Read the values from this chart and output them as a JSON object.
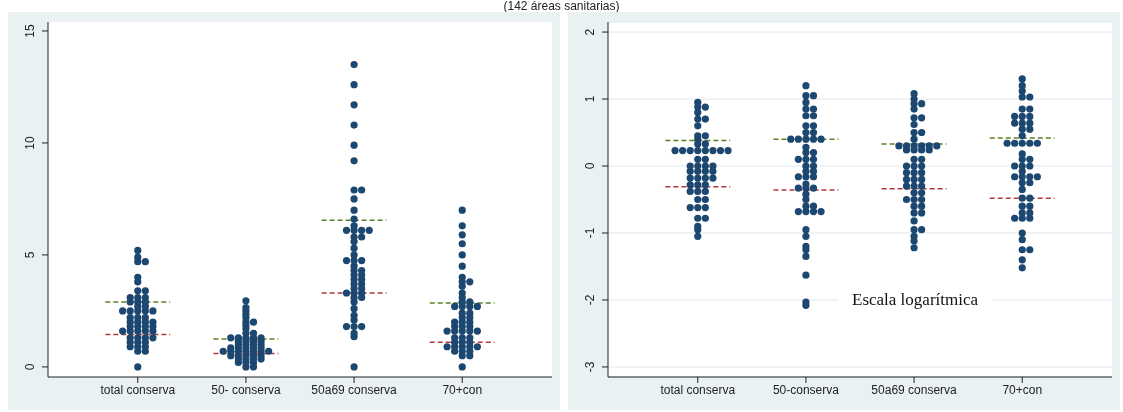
{
  "chart_data": [
    {
      "type": "scatter",
      "subtitle": "(142 áreas sanitarias)",
      "categories": [
        "total conserva",
        "50- conserva",
        "50a69 conserva",
        "70+con"
      ],
      "ylim": [
        -0.45,
        15.4
      ],
      "yticks": [
        0,
        5,
        10,
        15
      ],
      "marker": "circle",
      "series": [
        {
          "color": "#1b4770",
          "x": [
            "total conserva",
            "total conserva",
            "total conserva",
            "total conserva",
            "total conserva",
            "total conserva",
            "total conserva",
            "total conserva",
            "total conserva",
            "total conserva",
            "total conserva",
            "total conserva",
            "total conserva",
            "total conserva",
            "total conserva",
            "total conserva",
            "total conserva",
            "total conserva",
            "total conserva",
            "total conserva",
            "total conserva",
            "total conserva",
            "total conserva",
            "total conserva",
            "total conserva",
            "total conserva",
            "total conserva",
            "total conserva",
            "total conserva",
            "total conserva",
            "total conserva",
            "total conserva",
            "total conserva",
            "total conserva",
            "total conserva",
            "total conserva",
            "total conserva",
            "total conserva",
            "total conserva",
            "total conserva",
            "total conserva",
            "total conserva",
            "total conserva",
            "total conserva",
            "total conserva",
            "total conserva",
            "total conserva",
            "total conserva",
            "total conserva",
            "total conserva"
          ],
          "values": [
            0,
            0.7,
            0.7,
            0.9,
            0.9,
            0.9,
            1.1,
            1.1,
            1.1,
            1.3,
            1.3,
            1.3,
            1.3,
            1.6,
            1.6,
            1.6,
            1.6,
            1.6,
            1.8,
            1.8,
            1.8,
            1.8,
            2.0,
            2.0,
            2.0,
            2.0,
            2.2,
            2.2,
            2.2,
            2.5,
            2.5,
            2.5,
            2.5,
            2.5,
            2.7,
            2.7,
            2.9,
            2.9,
            2.9,
            3.1,
            3.1,
            3.1,
            3.4,
            3.4,
            3.8,
            4.0,
            4.7,
            4.7,
            4.9,
            5.2
          ]
        },
        {
          "color": "#1b4770",
          "x": [
            "50- conserva",
            "50- conserva",
            "50- conserva",
            "50- conserva",
            "50- conserva",
            "50- conserva",
            "50- conserva",
            "50- conserva",
            "50- conserva",
            "50- conserva",
            "50- conserva",
            "50- conserva",
            "50- conserva",
            "50- conserva",
            "50- conserva",
            "50- conserva",
            "50- conserva",
            "50- conserva",
            "50- conserva",
            "50- conserva",
            "50- conserva",
            "50- conserva",
            "50- conserva",
            "50- conserva",
            "50- conserva",
            "50- conserva",
            "50- conserva",
            "50- conserva",
            "50- conserva",
            "50- conserva",
            "50- conserva",
            "50- conserva",
            "50- conserva",
            "50- conserva",
            "50- conserva",
            "50- conserva",
            "50- conserva",
            "50- conserva",
            "50- conserva",
            "50- conserva",
            "50- conserva",
            "50- conserva",
            "50- conserva",
            "50- conserva",
            "50- conserva",
            "50- conserva",
            "50- conserva",
            "50- conserva",
            "50- conserva",
            "50- conserva"
          ],
          "values": [
            0,
            0,
            0.2,
            0.2,
            0.2,
            0.35,
            0.35,
            0.35,
            0.35,
            0.5,
            0.5,
            0.5,
            0.5,
            0.5,
            0.7,
            0.7,
            0.7,
            0.7,
            0.7,
            0.7,
            0.7,
            0.85,
            0.85,
            0.85,
            0.85,
            0.85,
            1.0,
            1.0,
            1.0,
            1.0,
            1.15,
            1.15,
            1.15,
            1.15,
            1.3,
            1.3,
            1.3,
            1.3,
            1.3,
            1.5,
            1.5,
            1.7,
            1.85,
            2.0,
            2.0,
            2.2,
            2.35,
            2.5,
            2.65,
            2.95
          ]
        },
        {
          "color": "#1b4770",
          "x": [
            "50a69 conserva",
            "50a69 conserva",
            "50a69 conserva",
            "50a69 conserva",
            "50a69 conserva",
            "50a69 conserva",
            "50a69 conserva",
            "50a69 conserva",
            "50a69 conserva",
            "50a69 conserva",
            "50a69 conserva",
            "50a69 conserva",
            "50a69 conserva",
            "50a69 conserva",
            "50a69 conserva",
            "50a69 conserva",
            "50a69 conserva",
            "50a69 conserva",
            "50a69 conserva",
            "50a69 conserva",
            "50a69 conserva",
            "50a69 conserva",
            "50a69 conserva",
            "50a69 conserva",
            "50a69 conserva",
            "50a69 conserva",
            "50a69 conserva",
            "50a69 conserva",
            "50a69 conserva",
            "50a69 conserva",
            "50a69 conserva",
            "50a69 conserva",
            "50a69 conserva",
            "50a69 conserva",
            "50a69 conserva",
            "50a69 conserva",
            "50a69 conserva",
            "50a69 conserva",
            "50a69 conserva",
            "50a69 conserva",
            "50a69 conserva",
            "50a69 conserva",
            "50a69 conserva",
            "50a69 conserva",
            "50a69 conserva",
            "50a69 conserva",
            "50a69 conserva",
            "50a69 conserva",
            "50a69 conserva",
            "50a69 conserva"
          ],
          "values": [
            0,
            1.35,
            1.5,
            1.8,
            1.8,
            1.8,
            2.1,
            2.3,
            2.6,
            2.9,
            3.1,
            3.1,
            3.3,
            3.3,
            3.3,
            3.5,
            3.5,
            3.7,
            3.7,
            3.9,
            3.9,
            4.1,
            4.1,
            4.3,
            4.3,
            4.5,
            4.75,
            4.75,
            4.75,
            5.0,
            5.3,
            5.6,
            5.8,
            5.8,
            6.1,
            6.1,
            6.1,
            6.1,
            6.3,
            6.6,
            7.0,
            7.5,
            7.9,
            7.9,
            9.2,
            9.9,
            10.8,
            11.7,
            12.6,
            13.5
          ]
        },
        {
          "color": "#1b4770",
          "x": [
            "70+con",
            "70+con",
            "70+con",
            "70+con",
            "70+con",
            "70+con",
            "70+con",
            "70+con",
            "70+con",
            "70+con",
            "70+con",
            "70+con",
            "70+con",
            "70+con",
            "70+con",
            "70+con",
            "70+con",
            "70+con",
            "70+con",
            "70+con",
            "70+con",
            "70+con",
            "70+con",
            "70+con",
            "70+con",
            "70+con",
            "70+con",
            "70+con",
            "70+con",
            "70+con",
            "70+con",
            "70+con",
            "70+con",
            "70+con",
            "70+con",
            "70+con",
            "70+con",
            "70+con",
            "70+con",
            "70+con",
            "70+con",
            "70+con",
            "70+con",
            "70+con",
            "70+con",
            "70+con",
            "70+con",
            "70+con",
            "70+con",
            "70+con"
          ],
          "values": [
            0,
            0.5,
            0.5,
            0.7,
            0.7,
            0.7,
            0.9,
            0.9,
            0.9,
            0.9,
            0.9,
            1.1,
            1.1,
            1.1,
            1.3,
            1.3,
            1.3,
            1.6,
            1.6,
            1.6,
            1.6,
            1.6,
            1.8,
            1.8,
            1.8,
            2.0,
            2.0,
            2.0,
            2.2,
            2.2,
            2.4,
            2.4,
            2.7,
            2.7,
            2.7,
            2.7,
            2.9,
            2.9,
            3.1,
            3.3,
            3.6,
            3.8,
            3.8,
            4.0,
            4.5,
            5.0,
            5.5,
            5.9,
            6.3,
            7.0
          ]
        }
      ],
      "ref_lines": [
        {
          "axis": "y",
          "value": 2.9,
          "color": "#5b7f1f",
          "line_style": "dashed"
        },
        {
          "axis": "y",
          "value": 1.45,
          "color": "#b5393b",
          "line_style": "dashed"
        },
        {
          "axis": "y",
          "value": 1.25,
          "color": "#5b7f1f",
          "line_style": "dashed"
        },
        {
          "axis": "y",
          "value": 0.6,
          "color": "#b5393b",
          "line_style": "dashed"
        },
        {
          "axis": "y",
          "value": 6.55,
          "color": "#5b7f1f",
          "line_style": "dashed"
        },
        {
          "axis": "y",
          "value": 3.3,
          "color": "#b5393b",
          "line_style": "dashed"
        },
        {
          "axis": "y",
          "value": 2.85,
          "color": "#5b7f1f",
          "line_style": "dashed"
        },
        {
          "axis": "y",
          "value": 1.1,
          "color": "#b5393b",
          "line_style": "dashed"
        }
      ]
    },
    {
      "type": "scatter",
      "categories": [
        "total conserva",
        "50-conserva",
        "50a69 conserva",
        "70+con"
      ],
      "ylim": [
        -3.15,
        2.15
      ],
      "yticks": [
        -3,
        -2,
        -1,
        0,
        1,
        2
      ],
      "grid": "y",
      "marker": "circle",
      "annotations": [
        "Escala logarítmica"
      ],
      "series": [
        {
          "color": "#1b4770",
          "x": [
            "total conserva",
            "total conserva",
            "total conserva",
            "total conserva",
            "total conserva",
            "total conserva",
            "total conserva",
            "total conserva",
            "total conserva",
            "total conserva",
            "total conserva",
            "total conserva",
            "total conserva",
            "total conserva",
            "total conserva",
            "total conserva",
            "total conserva",
            "total conserva",
            "total conserva",
            "total conserva",
            "total conserva",
            "total conserva",
            "total conserva",
            "total conserva",
            "total conserva",
            "total conserva",
            "total conserva",
            "total conserva",
            "total conserva",
            "total conserva",
            "total conserva",
            "total conserva",
            "total conserva",
            "total conserva",
            "total conserva",
            "total conserva",
            "total conserva",
            "total conserva",
            "total conserva",
            "total conserva",
            "total conserva",
            "total conserva",
            "total conserva",
            "total conserva",
            "total conserva",
            "total conserva",
            "total conserva",
            "total conserva",
            "total conserva",
            "total conserva"
          ],
          "values": [
            -1.05,
            -0.95,
            -0.9,
            -0.78,
            -0.78,
            -0.62,
            -0.62,
            -0.62,
            -0.5,
            -0.5,
            -0.38,
            -0.38,
            -0.38,
            -0.28,
            -0.28,
            -0.28,
            -0.18,
            -0.18,
            -0.18,
            -0.18,
            -0.08,
            -0.08,
            -0.08,
            -0.08,
            0,
            0,
            0,
            0,
            0.1,
            0.1,
            0.23,
            0.23,
            0.23,
            0.23,
            0.23,
            0.23,
            0.23,
            0.23,
            0.33,
            0.33,
            0.4,
            0.45,
            0.45,
            0.6,
            0.7,
            0.7,
            0.8,
            0.88,
            0.88,
            0.95
          ]
        },
        {
          "color": "#1b4770",
          "x": [
            "50-conserva",
            "50-conserva",
            "50-conserva",
            "50-conserva",
            "50-conserva",
            "50-conserva",
            "50-conserva",
            "50-conserva",
            "50-conserva",
            "50-conserva",
            "50-conserva",
            "50-conserva",
            "50-conserva",
            "50-conserva",
            "50-conserva",
            "50-conserva",
            "50-conserva",
            "50-conserva",
            "50-conserva",
            "50-conserva",
            "50-conserva",
            "50-conserva",
            "50-conserva",
            "50-conserva",
            "50-conserva",
            "50-conserva",
            "50-conserva",
            "50-conserva",
            "50-conserva",
            "50-conserva",
            "50-conserva",
            "50-conserva",
            "50-conserva",
            "50-conserva",
            "50-conserva",
            "50-conserva",
            "50-conserva",
            "50-conserva",
            "50-conserva",
            "50-conserva",
            "50-conserva",
            "50-conserva",
            "50-conserva",
            "50-conserva",
            "50-conserva",
            "50-conserva",
            "50-conserva",
            "50-conserva",
            "50-conserva",
            "50-conserva"
          ],
          "values": [
            -2.08,
            -2.03,
            -1.63,
            -1.35,
            -1.25,
            -1.2,
            -1.05,
            -0.95,
            -0.68,
            -0.68,
            -0.68,
            -0.68,
            -0.6,
            -0.6,
            -0.5,
            -0.42,
            -0.33,
            -0.33,
            -0.33,
            -0.27,
            -0.16,
            -0.16,
            -0.16,
            -0.08,
            -0.08,
            0,
            0,
            0.1,
            0.1,
            0.1,
            0.2,
            0.2,
            0.28,
            0.4,
            0.4,
            0.4,
            0.4,
            0.4,
            0.5,
            0.5,
            0.6,
            0.6,
            0.75,
            0.75,
            0.85,
            0.85,
            0.95,
            1.05,
            1.05,
            1.2
          ]
        },
        {
          "color": "#1b4770",
          "x": [
            "50a69 conserva",
            "50a69 conserva",
            "50a69 conserva",
            "50a69 conserva",
            "50a69 conserva",
            "50a69 conserva",
            "50a69 conserva",
            "50a69 conserva",
            "50a69 conserva",
            "50a69 conserva",
            "50a69 conserva",
            "50a69 conserva",
            "50a69 conserva",
            "50a69 conserva",
            "50a69 conserva",
            "50a69 conserva",
            "50a69 conserva",
            "50a69 conserva",
            "50a69 conserva",
            "50a69 conserva",
            "50a69 conserva",
            "50a69 conserva",
            "50a69 conserva",
            "50a69 conserva",
            "50a69 conserva",
            "50a69 conserva",
            "50a69 conserva",
            "50a69 conserva",
            "50a69 conserva",
            "50a69 conserva",
            "50a69 conserva",
            "50a69 conserva",
            "50a69 conserva",
            "50a69 conserva",
            "50a69 conserva",
            "50a69 conserva",
            "50a69 conserva",
            "50a69 conserva",
            "50a69 conserva",
            "50a69 conserva",
            "50a69 conserva",
            "50a69 conserva",
            "50a69 conserva",
            "50a69 conserva",
            "50a69 conserva",
            "50a69 conserva",
            "50a69 conserva",
            "50a69 conserva",
            "50a69 conserva",
            "50a69 conserva"
          ],
          "values": [
            -1.22,
            -1.12,
            -1.05,
            -0.95,
            -0.95,
            -0.82,
            -0.7,
            -0.7,
            -0.6,
            -0.6,
            -0.5,
            -0.5,
            -0.5,
            -0.4,
            -0.4,
            -0.3,
            -0.3,
            -0.3,
            -0.2,
            -0.2,
            -0.2,
            -0.1,
            -0.1,
            -0.1,
            0,
            0,
            0,
            0.1,
            0.1,
            0.24,
            0.24,
            0.24,
            0.24,
            0.3,
            0.3,
            0.3,
            0.3,
            0.3,
            0.3,
            0.4,
            0.5,
            0.5,
            0.62,
            0.72,
            0.72,
            0.85,
            0.93,
            0.93,
            1.0,
            1.08
          ]
        },
        {
          "color": "#1b4770",
          "x": [
            "70+con",
            "70+con",
            "70+con",
            "70+con",
            "70+con",
            "70+con",
            "70+con",
            "70+con",
            "70+con",
            "70+con",
            "70+con",
            "70+con",
            "70+con",
            "70+con",
            "70+con",
            "70+con",
            "70+con",
            "70+con",
            "70+con",
            "70+con",
            "70+con",
            "70+con",
            "70+con",
            "70+con",
            "70+con",
            "70+con",
            "70+con",
            "70+con",
            "70+con",
            "70+con",
            "70+con",
            "70+con",
            "70+con",
            "70+con",
            "70+con",
            "70+con",
            "70+con",
            "70+con",
            "70+con",
            "70+con",
            "70+con",
            "70+con",
            "70+con",
            "70+con",
            "70+con",
            "70+con",
            "70+con",
            "70+con",
            "70+con",
            "70+con"
          ],
          "values": [
            -1.52,
            -1.4,
            -1.25,
            -1.25,
            -1.1,
            -1.0,
            -0.78,
            -0.78,
            -0.78,
            -0.7,
            -0.7,
            -0.6,
            -0.6,
            -0.48,
            -0.48,
            -0.35,
            -0.25,
            -0.25,
            -0.16,
            -0.16,
            -0.16,
            -0.16,
            -0.08,
            0,
            0,
            0,
            0.1,
            0.1,
            0.18,
            0.34,
            0.34,
            0.34,
            0.34,
            0.34,
            0.45,
            0.55,
            0.55,
            0.64,
            0.64,
            0.64,
            0.74,
            0.74,
            0.74,
            0.85,
            0.85,
            1.03,
            1.03,
            1.12,
            1.2,
            1.3
          ]
        }
      ],
      "ref_lines": [
        {
          "axis": "y",
          "value": 0.38,
          "color": "#5b7f1f",
          "line_style": "dashed"
        },
        {
          "axis": "y",
          "value": -0.31,
          "color": "#b5393b",
          "line_style": "dashed"
        },
        {
          "axis": "y",
          "value": 0.4,
          "color": "#5b7f1f",
          "line_style": "dashed"
        },
        {
          "axis": "y",
          "value": -0.36,
          "color": "#b5393b",
          "line_style": "dashed"
        },
        {
          "axis": "y",
          "value": 0.33,
          "color": "#5b7f1f",
          "line_style": "dashed"
        },
        {
          "axis": "y",
          "value": -0.34,
          "color": "#b5393b",
          "line_style": "dashed"
        },
        {
          "axis": "y",
          "value": 0.42,
          "color": "#5b7f1f",
          "line_style": "dashed"
        },
        {
          "axis": "y",
          "value": -0.48,
          "color": "#b5393b",
          "line_style": "dashed"
        }
      ]
    }
  ]
}
